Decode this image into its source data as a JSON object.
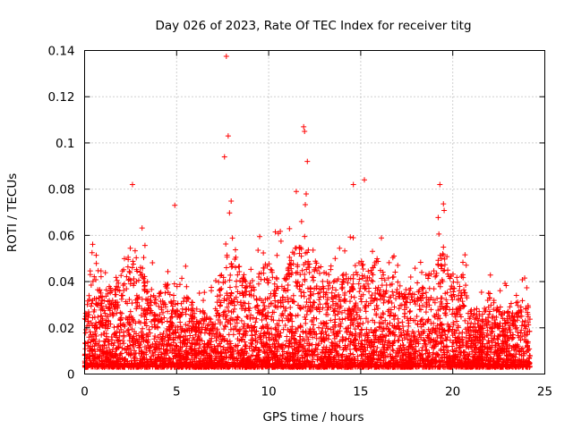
{
  "chart_data": {
    "type": "scatter",
    "title": "Day 026 of 2023, Rate Of TEC Index for receiver titg",
    "xlabel": "GPS time / hours",
    "ylabel": "ROTI / TECUs",
    "xlim": [
      0,
      25
    ],
    "ylim": [
      0,
      0.14
    ],
    "xticks": [
      0,
      5,
      10,
      15,
      20,
      25
    ],
    "yticks": [
      0,
      0.02,
      0.04,
      0.06,
      0.08,
      0.1,
      0.12,
      0.14
    ],
    "xtick_labels": [
      "0",
      "5",
      "10",
      "15",
      "20",
      "25"
    ],
    "ytick_labels": [
      "0",
      "0.02",
      "0.04",
      "0.06",
      "0.08",
      "0.1",
      "0.12",
      "0.14"
    ],
    "grid": true,
    "marker": "+",
    "color": "#ff0000",
    "notable_points": [
      {
        "x": 7.7,
        "y": 0.1375
      },
      {
        "x": 7.8,
        "y": 0.103
      },
      {
        "x": 11.9,
        "y": 0.107
      },
      {
        "x": 11.95,
        "y": 0.105
      },
      {
        "x": 2.6,
        "y": 0.082
      },
      {
        "x": 4.9,
        "y": 0.073
      },
      {
        "x": 14.6,
        "y": 0.082
      },
      {
        "x": 15.2,
        "y": 0.084
      },
      {
        "x": 19.3,
        "y": 0.082
      },
      {
        "x": 7.6,
        "y": 0.094
      },
      {
        "x": 12.1,
        "y": 0.092
      },
      {
        "x": 11.5,
        "y": 0.079
      }
    ],
    "envelope": {
      "x": [
        0,
        0.5,
        1,
        1.5,
        2,
        2.5,
        3,
        3.5,
        4,
        4.5,
        5,
        5.5,
        6,
        6.5,
        7,
        7.5,
        8,
        8.5,
        9,
        9.5,
        10,
        10.5,
        11,
        11.5,
        12,
        12.5,
        13,
        13.5,
        14,
        14.5,
        15,
        15.5,
        16,
        16.5,
        17,
        17.5,
        18,
        18.5,
        19,
        19.5,
        20,
        20.5,
        21,
        21.5,
        22,
        22.5,
        23,
        23.5,
        24
      ],
      "typical_max": [
        0.025,
        0.045,
        0.035,
        0.04,
        0.045,
        0.06,
        0.05,
        0.04,
        0.035,
        0.04,
        0.03,
        0.035,
        0.03,
        0.028,
        0.028,
        0.05,
        0.06,
        0.045,
        0.04,
        0.045,
        0.05,
        0.045,
        0.05,
        0.055,
        0.06,
        0.05,
        0.045,
        0.04,
        0.045,
        0.045,
        0.05,
        0.045,
        0.055,
        0.045,
        0.04,
        0.035,
        0.035,
        0.04,
        0.05,
        0.055,
        0.04,
        0.045,
        0.03,
        0.025,
        0.035,
        0.03,
        0.03,
        0.035,
        0.03
      ],
      "floor": 0.003
    },
    "samples_drawn": 5200
  }
}
